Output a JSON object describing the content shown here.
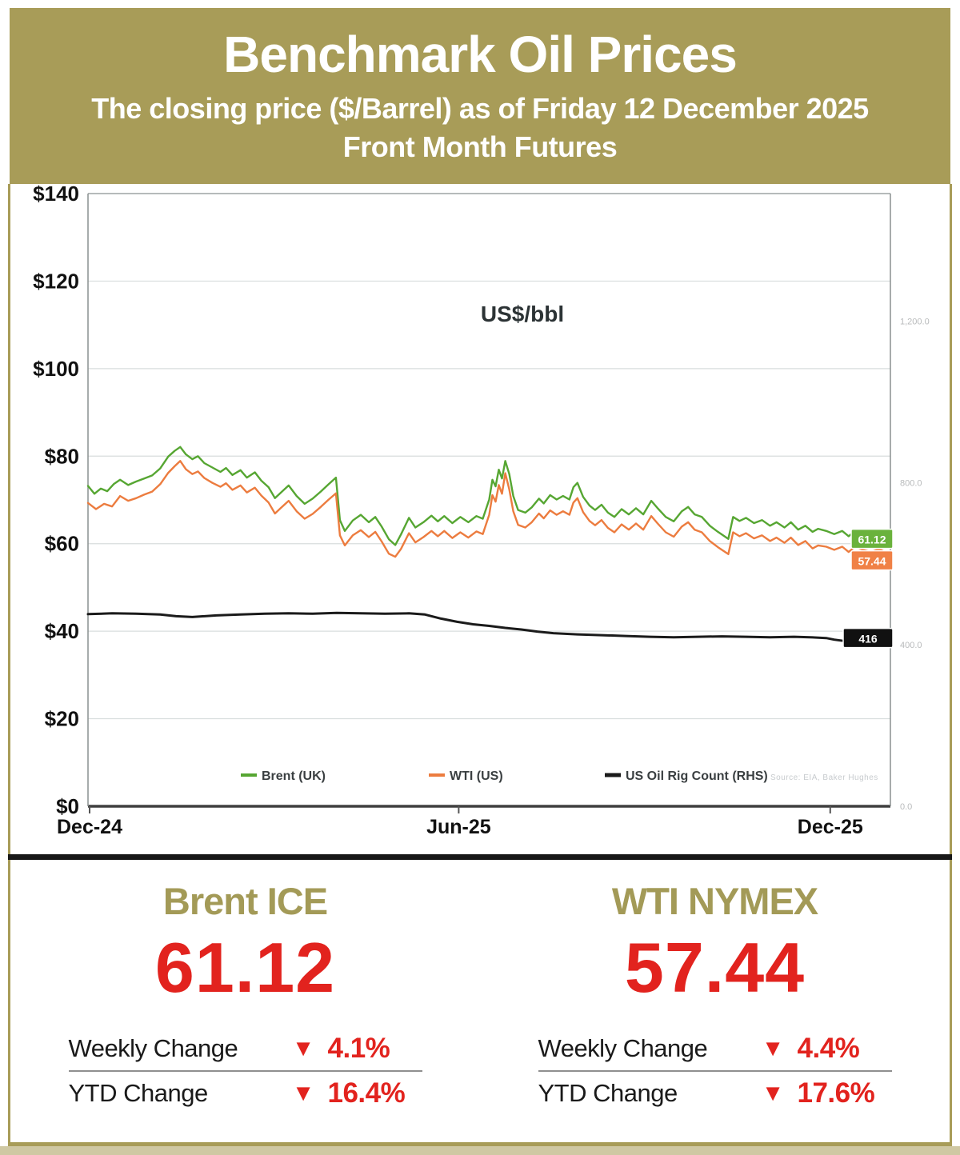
{
  "header": {
    "title": "Benchmark Oil Prices",
    "subtitle": "The closing price ($/Barrel) as of Friday 12 December 2025",
    "subtitle2": "Front Month  Futures"
  },
  "chart_data": {
    "type": "line",
    "inner_title": "US$/bbl",
    "source_note": "Source: EIA, Baker Hughes",
    "x_ticks": [
      {
        "label": "Dec-24",
        "f": 0.002
      },
      {
        "label": "Jun-25",
        "f": 0.462
      },
      {
        "label": "Dec-25",
        "f": 0.925
      }
    ],
    "y_left": {
      "min": 0,
      "max": 140,
      "tick_values": [
        140,
        120,
        100,
        80,
        60,
        40,
        20,
        0
      ],
      "tick_labels": [
        "$140",
        "$120",
        "$100",
        "$80",
        "$60",
        "$40",
        "$20",
        "$0"
      ]
    },
    "y_right": {
      "min": 0,
      "max": 1515,
      "tick_values": [
        1200,
        800,
        400,
        0
      ],
      "tick_labels": [
        "1,200.0",
        "800.0",
        "400.0",
        "0.0"
      ]
    },
    "series": [
      {
        "name": "Brent (UK)",
        "axis": "left",
        "color": "#56a632",
        "label_bg": "#6ab23c",
        "end_label": "61.12",
        "points": [
          [
            0,
            73.2
          ],
          [
            0.008,
            71.4
          ],
          [
            0.016,
            72.6
          ],
          [
            0.024,
            72.0
          ],
          [
            0.032,
            73.6
          ],
          [
            0.04,
            74.6
          ],
          [
            0.05,
            73.4
          ],
          [
            0.06,
            74.2
          ],
          [
            0.07,
            74.9
          ],
          [
            0.08,
            75.6
          ],
          [
            0.09,
            77.2
          ],
          [
            0.1,
            79.9
          ],
          [
            0.108,
            81.2
          ],
          [
            0.115,
            82.1
          ],
          [
            0.122,
            80.4
          ],
          [
            0.13,
            79.3
          ],
          [
            0.137,
            80.0
          ],
          [
            0.145,
            78.4
          ],
          [
            0.155,
            77.4
          ],
          [
            0.165,
            76.4
          ],
          [
            0.172,
            77.3
          ],
          [
            0.18,
            75.7
          ],
          [
            0.19,
            76.8
          ],
          [
            0.198,
            75.1
          ],
          [
            0.208,
            76.3
          ],
          [
            0.216,
            74.4
          ],
          [
            0.225,
            72.9
          ],
          [
            0.233,
            70.4
          ],
          [
            0.24,
            71.6
          ],
          [
            0.25,
            73.3
          ],
          [
            0.26,
            70.9
          ],
          [
            0.27,
            69.1
          ],
          [
            0.28,
            70.3
          ],
          [
            0.29,
            71.9
          ],
          [
            0.3,
            73.6
          ],
          [
            0.309,
            75.1
          ],
          [
            0.314,
            65.4
          ],
          [
            0.32,
            62.9
          ],
          [
            0.33,
            65.3
          ],
          [
            0.34,
            66.6
          ],
          [
            0.35,
            64.9
          ],
          [
            0.358,
            66.1
          ],
          [
            0.366,
            63.9
          ],
          [
            0.375,
            61.0
          ],
          [
            0.383,
            59.7
          ],
          [
            0.39,
            62.1
          ],
          [
            0.4,
            65.9
          ],
          [
            0.408,
            63.7
          ],
          [
            0.418,
            64.9
          ],
          [
            0.428,
            66.4
          ],
          [
            0.436,
            65.1
          ],
          [
            0.444,
            66.3
          ],
          [
            0.454,
            64.7
          ],
          [
            0.464,
            66.1
          ],
          [
            0.474,
            64.9
          ],
          [
            0.484,
            66.3
          ],
          [
            0.492,
            65.7
          ],
          [
            0.5,
            70.1
          ],
          [
            0.504,
            74.6
          ],
          [
            0.508,
            73.1
          ],
          [
            0.512,
            76.9
          ],
          [
            0.516,
            74.9
          ],
          [
            0.52,
            78.9
          ],
          [
            0.525,
            75.9
          ],
          [
            0.53,
            70.9
          ],
          [
            0.536,
            67.7
          ],
          [
            0.545,
            67.1
          ],
          [
            0.553,
            68.3
          ],
          [
            0.562,
            70.3
          ],
          [
            0.568,
            69.2
          ],
          [
            0.576,
            71.1
          ],
          [
            0.584,
            70.1
          ],
          [
            0.592,
            70.9
          ],
          [
            0.6,
            70.1
          ],
          [
            0.605,
            72.9
          ],
          [
            0.61,
            73.9
          ],
          [
            0.617,
            70.7
          ],
          [
            0.625,
            68.7
          ],
          [
            0.632,
            67.7
          ],
          [
            0.64,
            68.9
          ],
          [
            0.648,
            67.1
          ],
          [
            0.656,
            66.1
          ],
          [
            0.665,
            67.9
          ],
          [
            0.674,
            66.7
          ],
          [
            0.683,
            68.1
          ],
          [
            0.692,
            66.7
          ],
          [
            0.702,
            69.8
          ],
          [
            0.71,
            68.1
          ],
          [
            0.72,
            66.1
          ],
          [
            0.73,
            65.1
          ],
          [
            0.74,
            67.4
          ],
          [
            0.748,
            68.4
          ],
          [
            0.756,
            66.7
          ],
          [
            0.765,
            66.1
          ],
          [
            0.775,
            64.1
          ],
          [
            0.785,
            62.7
          ],
          [
            0.798,
            61.1
          ],
          [
            0.804,
            66.1
          ],
          [
            0.812,
            65.2
          ],
          [
            0.82,
            65.9
          ],
          [
            0.83,
            64.7
          ],
          [
            0.84,
            65.4
          ],
          [
            0.85,
            64.1
          ],
          [
            0.858,
            64.9
          ],
          [
            0.868,
            63.7
          ],
          [
            0.876,
            64.9
          ],
          [
            0.885,
            63.2
          ],
          [
            0.894,
            64.1
          ],
          [
            0.903,
            62.7
          ],
          [
            0.91,
            63.4
          ],
          [
            0.92,
            62.9
          ],
          [
            0.93,
            62.2
          ],
          [
            0.94,
            62.9
          ],
          [
            0.948,
            61.7
          ],
          [
            0.956,
            62.9
          ],
          [
            0.966,
            62.1
          ],
          [
            0.976,
            61.7
          ],
          [
            0.986,
            62.4
          ],
          [
            1,
            61.12
          ]
        ]
      },
      {
        "name": "WTI (US)",
        "axis": "left",
        "color": "#ec7c3f",
        "label_bg": "#f08146",
        "end_label": "57.44",
        "points": [
          [
            0,
            69.3
          ],
          [
            0.01,
            67.9
          ],
          [
            0.02,
            69.1
          ],
          [
            0.03,
            68.5
          ],
          [
            0.04,
            70.9
          ],
          [
            0.05,
            69.8
          ],
          [
            0.06,
            70.4
          ],
          [
            0.07,
            71.2
          ],
          [
            0.08,
            71.9
          ],
          [
            0.09,
            73.6
          ],
          [
            0.1,
            76.2
          ],
          [
            0.108,
            77.7
          ],
          [
            0.115,
            78.9
          ],
          [
            0.122,
            77.0
          ],
          [
            0.13,
            75.9
          ],
          [
            0.137,
            76.5
          ],
          [
            0.145,
            75.0
          ],
          [
            0.155,
            73.9
          ],
          [
            0.165,
            73.0
          ],
          [
            0.172,
            73.8
          ],
          [
            0.18,
            72.3
          ],
          [
            0.19,
            73.3
          ],
          [
            0.198,
            71.7
          ],
          [
            0.208,
            72.8
          ],
          [
            0.216,
            71.0
          ],
          [
            0.225,
            69.4
          ],
          [
            0.233,
            66.9
          ],
          [
            0.24,
            68.1
          ],
          [
            0.25,
            69.8
          ],
          [
            0.26,
            67.4
          ],
          [
            0.27,
            65.7
          ],
          [
            0.28,
            66.8
          ],
          [
            0.29,
            68.4
          ],
          [
            0.3,
            70.1
          ],
          [
            0.309,
            71.5
          ],
          [
            0.314,
            61.9
          ],
          [
            0.32,
            59.6
          ],
          [
            0.33,
            61.9
          ],
          [
            0.34,
            63.1
          ],
          [
            0.35,
            61.5
          ],
          [
            0.358,
            62.7
          ],
          [
            0.366,
            60.5
          ],
          [
            0.375,
            57.7
          ],
          [
            0.383,
            57.0
          ],
          [
            0.39,
            58.8
          ],
          [
            0.4,
            62.4
          ],
          [
            0.408,
            60.3
          ],
          [
            0.418,
            61.5
          ],
          [
            0.428,
            62.9
          ],
          [
            0.436,
            61.7
          ],
          [
            0.444,
            62.9
          ],
          [
            0.454,
            61.3
          ],
          [
            0.464,
            62.6
          ],
          [
            0.474,
            61.4
          ],
          [
            0.484,
            62.8
          ],
          [
            0.492,
            62.2
          ],
          [
            0.5,
            66.6
          ],
          [
            0.504,
            71.1
          ],
          [
            0.508,
            69.6
          ],
          [
            0.512,
            73.4
          ],
          [
            0.516,
            71.4
          ],
          [
            0.52,
            76.1
          ],
          [
            0.525,
            72.4
          ],
          [
            0.53,
            67.4
          ],
          [
            0.536,
            64.3
          ],
          [
            0.545,
            63.7
          ],
          [
            0.553,
            64.9
          ],
          [
            0.562,
            66.9
          ],
          [
            0.568,
            65.8
          ],
          [
            0.576,
            67.6
          ],
          [
            0.584,
            66.6
          ],
          [
            0.592,
            67.4
          ],
          [
            0.6,
            66.6
          ],
          [
            0.605,
            69.4
          ],
          [
            0.61,
            70.4
          ],
          [
            0.617,
            67.2
          ],
          [
            0.625,
            65.2
          ],
          [
            0.632,
            64.2
          ],
          [
            0.64,
            65.4
          ],
          [
            0.648,
            63.6
          ],
          [
            0.656,
            62.6
          ],
          [
            0.665,
            64.4
          ],
          [
            0.674,
            63.2
          ],
          [
            0.683,
            64.6
          ],
          [
            0.692,
            63.2
          ],
          [
            0.702,
            66.3
          ],
          [
            0.71,
            64.6
          ],
          [
            0.72,
            62.6
          ],
          [
            0.73,
            61.6
          ],
          [
            0.74,
            63.9
          ],
          [
            0.748,
            64.9
          ],
          [
            0.756,
            63.2
          ],
          [
            0.765,
            62.6
          ],
          [
            0.775,
            60.6
          ],
          [
            0.785,
            59.2
          ],
          [
            0.798,
            57.6
          ],
          [
            0.804,
            62.6
          ],
          [
            0.812,
            61.7
          ],
          [
            0.82,
            62.4
          ],
          [
            0.83,
            61.2
          ],
          [
            0.84,
            61.9
          ],
          [
            0.85,
            60.6
          ],
          [
            0.858,
            61.4
          ],
          [
            0.868,
            60.2
          ],
          [
            0.876,
            61.4
          ],
          [
            0.885,
            59.7
          ],
          [
            0.894,
            60.6
          ],
          [
            0.903,
            58.9
          ],
          [
            0.91,
            59.6
          ],
          [
            0.92,
            59.3
          ],
          [
            0.93,
            58.6
          ],
          [
            0.94,
            59.3
          ],
          [
            0.948,
            58.1
          ],
          [
            0.956,
            59.3
          ],
          [
            0.966,
            58.6
          ],
          [
            0.976,
            58.1
          ],
          [
            0.986,
            58.8
          ],
          [
            1,
            57.44
          ]
        ]
      },
      {
        "name": "US Oil Rig Count (RHS)",
        "axis": "right",
        "color": "#1b1b1b",
        "label_bg": "#111111",
        "end_label": "416",
        "points": [
          [
            0,
            475
          ],
          [
            0.03,
            477
          ],
          [
            0.06,
            476
          ],
          [
            0.09,
            474
          ],
          [
            0.11,
            470
          ],
          [
            0.13,
            468
          ],
          [
            0.16,
            472
          ],
          [
            0.19,
            474
          ],
          [
            0.22,
            476
          ],
          [
            0.25,
            477
          ],
          [
            0.28,
            476
          ],
          [
            0.31,
            478
          ],
          [
            0.34,
            477
          ],
          [
            0.37,
            476
          ],
          [
            0.4,
            477
          ],
          [
            0.42,
            474
          ],
          [
            0.44,
            464
          ],
          [
            0.46,
            456
          ],
          [
            0.48,
            450
          ],
          [
            0.5,
            446
          ],
          [
            0.52,
            441
          ],
          [
            0.54,
            437
          ],
          [
            0.56,
            432
          ],
          [
            0.58,
            428
          ],
          [
            0.61,
            425
          ],
          [
            0.64,
            423
          ],
          [
            0.67,
            421
          ],
          [
            0.7,
            419
          ],
          [
            0.73,
            418
          ],
          [
            0.76,
            419
          ],
          [
            0.79,
            420
          ],
          [
            0.82,
            419
          ],
          [
            0.85,
            418
          ],
          [
            0.88,
            419
          ],
          [
            0.9,
            418
          ],
          [
            0.92,
            416
          ],
          [
            0.93,
            412
          ],
          [
            0.945,
            408
          ],
          [
            0.96,
            412
          ],
          [
            0.975,
            414
          ],
          [
            1,
            416
          ]
        ]
      }
    ]
  },
  "panels": [
    {
      "title": "Brent ICE",
      "value": "61.12",
      "rows": [
        {
          "label": "Weekly Change",
          "arrow": "▼",
          "value": "4.1%"
        },
        {
          "label": "YTD Change",
          "arrow": "▼",
          "value": "16.4%"
        }
      ]
    },
    {
      "title": "WTI NYMEX",
      "value": "57.44",
      "rows": [
        {
          "label": "Weekly Change",
          "arrow": "▼",
          "value": "4.4%"
        },
        {
          "label": "YTD Change",
          "arrow": "▼",
          "value": "17.6%"
        }
      ]
    }
  ],
  "colors": {
    "gold": "#a89c58",
    "olive": "#a39a57",
    "red": "#e2231e",
    "brent_green": "#56a632",
    "wti_orange": "#ec7c3f",
    "rig_black": "#1b1b1b"
  }
}
